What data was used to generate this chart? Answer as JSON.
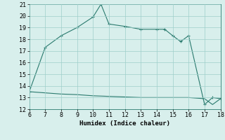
{
  "xlabel": "Humidex (Indice chaleur)",
  "x_upper": [
    6,
    7,
    8,
    9,
    10,
    10.5,
    11,
    12,
    13,
    14,
    14.5,
    15,
    15.5,
    16,
    17,
    17.5,
    18
  ],
  "y_upper": [
    13.5,
    17.3,
    18.3,
    19.0,
    19.9,
    21.0,
    19.3,
    19.1,
    18.85,
    18.85,
    18.85,
    18.3,
    17.8,
    18.3,
    12.4,
    13.0,
    12.9
  ],
  "x_lower": [
    6,
    7,
    8,
    9,
    10,
    11,
    12,
    13,
    14,
    15,
    16,
    17,
    17.5,
    18
  ],
  "y_lower": [
    13.5,
    13.4,
    13.3,
    13.25,
    13.15,
    13.1,
    13.05,
    13.0,
    13.0,
    13.0,
    13.0,
    12.9,
    12.4,
    12.9
  ],
  "line_color": "#2a7a6e",
  "bg_color": "#d8efec",
  "grid_color": "#9ecfca",
  "xlim": [
    6,
    18
  ],
  "ylim": [
    12,
    21
  ],
  "xticks": [
    6,
    7,
    8,
    9,
    10,
    11,
    12,
    13,
    14,
    15,
    16,
    17,
    18
  ],
  "yticks": [
    12,
    13,
    14,
    15,
    16,
    17,
    18,
    19,
    20,
    21
  ]
}
